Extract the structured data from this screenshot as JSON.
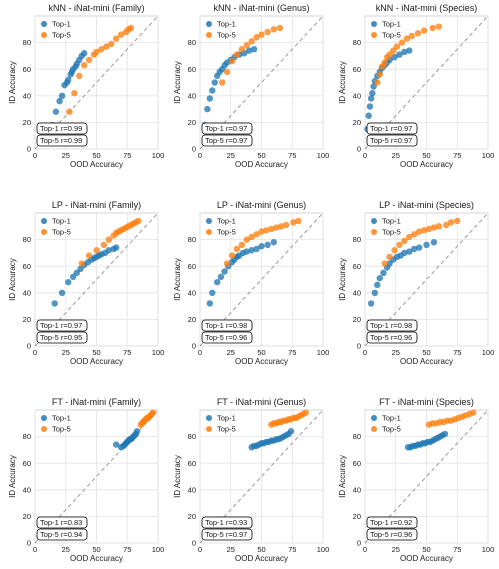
{
  "chart_data": [
    {
      "type": "scatter",
      "title": "kNN - iNat-mini (Family)",
      "xlabel": "OOD Accuracy",
      "ylabel": "ID Accuracy",
      "xlim": [
        0,
        100
      ],
      "ylim": [
        0,
        100
      ],
      "xticks": [
        0,
        25,
        50,
        75,
        100
      ],
      "yticks": [
        0,
        20,
        40,
        60,
        80
      ],
      "grid": true,
      "legend_position": "top-left",
      "diagonal": "dashed y=x",
      "series": [
        {
          "name": "Top-1",
          "color": "#1f77b4",
          "x": [
            14,
            17,
            20,
            22,
            24,
            26,
            27,
            29,
            30,
            31,
            33,
            34,
            36,
            38,
            40
          ],
          "y": [
            18,
            28,
            36,
            40,
            48,
            50,
            52,
            56,
            58,
            60,
            62,
            64,
            67,
            70,
            72
          ]
        },
        {
          "name": "Top-5",
          "color": "#ff7f0e",
          "x": [
            28,
            32,
            36,
            40,
            44,
            48,
            50,
            54,
            58,
            62,
            66,
            70,
            74,
            76,
            78
          ],
          "y": [
            28,
            42,
            55,
            63,
            67,
            71,
            73,
            75,
            77,
            79,
            83,
            86,
            88,
            90,
            91
          ]
        }
      ],
      "stats": [
        "Top-1 r=0.99",
        "Top-5 r=0.99"
      ]
    },
    {
      "type": "scatter",
      "title": "kNN - iNat-mini (Genus)",
      "xlabel": "OOD Accuracy",
      "ylabel": "ID Accuracy",
      "xlim": [
        0,
        100
      ],
      "ylim": [
        0,
        100
      ],
      "xticks": [
        0,
        25,
        50,
        75,
        100
      ],
      "yticks": [
        0,
        20,
        40,
        60,
        80
      ],
      "grid": true,
      "legend_position": "top-left",
      "diagonal": "dashed y=x",
      "series": [
        {
          "name": "Top-1",
          "color": "#1f77b4",
          "x": [
            4,
            6,
            8,
            10,
            12,
            14,
            16,
            18,
            20,
            22,
            25,
            28,
            32,
            36,
            40,
            44
          ],
          "y": [
            18,
            30,
            38,
            44,
            50,
            55,
            58,
            60,
            63,
            65,
            67,
            69,
            71,
            72,
            74,
            75
          ]
        },
        {
          "name": "Top-5",
          "color": "#ff7f0e",
          "x": [
            18,
            22,
            26,
            30,
            34,
            38,
            42,
            46,
            50,
            55,
            60,
            65
          ],
          "y": [
            50,
            58,
            66,
            71,
            75,
            78,
            81,
            84,
            86,
            88,
            90,
            91
          ]
        }
      ],
      "stats": [
        "Top-1 r=0.97",
        "Top-5 r=0.97"
      ]
    },
    {
      "type": "scatter",
      "title": "kNN - iNat-mini (Species)",
      "xlabel": "OOD Accuracy",
      "ylabel": "ID Accuracy",
      "xlim": [
        0,
        100
      ],
      "ylim": [
        0,
        100
      ],
      "xticks": [
        0,
        25,
        50,
        75,
        100
      ],
      "yticks": [
        0,
        20,
        40,
        60,
        80
      ],
      "grid": true,
      "legend_position": "top-left",
      "diagonal": "dashed y=x",
      "series": [
        {
          "name": "Top-1",
          "color": "#1f77b4",
          "x": [
            2,
            3,
            4,
            5,
            6,
            7,
            8,
            10,
            12,
            14,
            16,
            18,
            20,
            24,
            28,
            32,
            36
          ],
          "y": [
            15,
            25,
            32,
            38,
            42,
            47,
            51,
            55,
            58,
            61,
            63,
            65,
            67,
            69,
            71,
            73,
            74
          ]
        },
        {
          "name": "Top-5",
          "color": "#ff7f0e",
          "x": [
            10,
            12,
            14,
            16,
            18,
            20,
            23,
            26,
            30,
            34,
            38,
            43,
            48,
            55,
            60
          ],
          "y": [
            50,
            56,
            62,
            65,
            69,
            71,
            74,
            77,
            80,
            83,
            85,
            87,
            89,
            91,
            92
          ]
        }
      ],
      "stats": [
        "Top-1 r=0.97",
        "Top-5 r=0.97"
      ]
    },
    {
      "type": "scatter",
      "title": "LP - iNat-mini (Family)",
      "xlabel": "OOD Accuracy",
      "ylabel": "ID Accuracy",
      "xlim": [
        0,
        100
      ],
      "ylim": [
        0,
        100
      ],
      "xticks": [
        0,
        25,
        50,
        75,
        100
      ],
      "yticks": [
        0,
        20,
        40,
        60,
        80
      ],
      "grid": true,
      "legend_position": "top-left",
      "diagonal": "dashed y=x",
      "series": [
        {
          "name": "Top-1",
          "color": "#1f77b4",
          "x": [
            16,
            22,
            27,
            31,
            34,
            37,
            40,
            43,
            46,
            48,
            50,
            52,
            54,
            57,
            60,
            64,
            66
          ],
          "y": [
            32,
            40,
            48,
            52,
            55,
            58,
            61,
            63,
            65,
            66,
            67,
            68,
            69,
            70,
            72,
            73,
            74
          ]
        },
        {
          "name": "Top-5",
          "color": "#ff7f0e",
          "x": [
            38,
            44,
            50,
            56,
            60,
            64,
            66,
            68,
            70,
            72,
            74,
            76,
            78,
            80,
            82,
            84
          ],
          "y": [
            62,
            68,
            72,
            76,
            80,
            83,
            85,
            86,
            87,
            88,
            89,
            90,
            91,
            92,
            93,
            94
          ]
        }
      ],
      "stats": [
        "Top-1 r=0.97",
        "Top-5 r=0.95"
      ]
    },
    {
      "type": "scatter",
      "title": "LP - iNat-mini (Genus)",
      "xlabel": "OOD Accuracy",
      "ylabel": "ID Accuracy",
      "xlim": [
        0,
        100
      ],
      "ylim": [
        0,
        100
      ],
      "xticks": [
        0,
        25,
        50,
        75,
        100
      ],
      "yticks": [
        0,
        20,
        40,
        60,
        80
      ],
      "grid": true,
      "legend_position": "top-left",
      "diagonal": "dashed y=x",
      "series": [
        {
          "name": "Top-1",
          "color": "#1f77b4",
          "x": [
            8,
            10,
            14,
            17,
            20,
            23,
            26,
            28,
            30,
            32,
            35,
            38,
            42,
            46,
            50,
            55,
            60
          ],
          "y": [
            32,
            40,
            48,
            52,
            56,
            60,
            63,
            65,
            67,
            68,
            70,
            71,
            72,
            73,
            75,
            76,
            78
          ]
        },
        {
          "name": "Top-5",
          "color": "#ff7f0e",
          "x": [
            22,
            26,
            30,
            34,
            38,
            42,
            46,
            50,
            54,
            58,
            62,
            66,
            70,
            76,
            80
          ],
          "y": [
            62,
            68,
            73,
            76,
            80,
            82,
            84,
            86,
            87,
            88,
            89,
            90,
            91,
            93,
            94
          ]
        }
      ],
      "stats": [
        "Top-1 r=0.98",
        "Top-5 r=0.96"
      ]
    },
    {
      "type": "scatter",
      "title": "LP - iNat-mini (Species)",
      "xlabel": "OOD Accuracy",
      "ylabel": "ID Accuracy",
      "xlim": [
        0,
        100
      ],
      "ylim": [
        0,
        100
      ],
      "xticks": [
        0,
        25,
        50,
        75,
        100
      ],
      "yticks": [
        0,
        20,
        40,
        60,
        80
      ],
      "grid": true,
      "legend_position": "top-left",
      "diagonal": "dashed y=x",
      "series": [
        {
          "name": "Top-1",
          "color": "#1f77b4",
          "x": [
            5,
            8,
            10,
            12,
            15,
            18,
            20,
            23,
            26,
            29,
            32,
            36,
            40,
            44,
            50,
            56
          ],
          "y": [
            32,
            40,
            46,
            51,
            55,
            59,
            62,
            65,
            67,
            68,
            70,
            71,
            73,
            74,
            76,
            78
          ]
        },
        {
          "name": "Top-5",
          "color": "#ff7f0e",
          "x": [
            16,
            20,
            24,
            28,
            32,
            36,
            40,
            44,
            48,
            52,
            56,
            60,
            66,
            70,
            75
          ],
          "y": [
            62,
            67,
            72,
            76,
            79,
            82,
            84,
            86,
            87,
            88,
            89,
            90,
            91,
            93,
            94
          ]
        }
      ],
      "stats": [
        "Top-1 r=0.98",
        "Top-5 r=0.96"
      ]
    },
    {
      "type": "scatter",
      "title": "FT - iNat-mini (Family)",
      "xlabel": "OOD Accuracy",
      "ylabel": "ID Accuracy",
      "xlim": [
        0,
        100
      ],
      "ylim": [
        0,
        100
      ],
      "xticks": [
        0,
        25,
        50,
        75,
        100
      ],
      "yticks": [
        0,
        20,
        40,
        60,
        80
      ],
      "grid": true,
      "legend_position": "top-left",
      "diagonal": "dashed y=x",
      "series": [
        {
          "name": "Top-1",
          "color": "#1f77b4",
          "x": [
            66,
            70,
            72,
            73,
            74,
            75,
            76,
            77,
            78,
            79,
            80,
            81,
            82,
            83
          ],
          "y": [
            74,
            72,
            73,
            74,
            75,
            76,
            77,
            78,
            78,
            79,
            80,
            81,
            82,
            84
          ]
        },
        {
          "name": "Top-5",
          "color": "#ff7f0e",
          "x": [
            86,
            87,
            88,
            89,
            90,
            91,
            92,
            93,
            94,
            95,
            96
          ],
          "y": [
            89,
            90,
            91,
            92,
            93,
            94,
            94,
            95,
            96,
            97,
            98
          ]
        }
      ],
      "stats": [
        "Top-1 r=0.83",
        "Top-5 r=0.94"
      ]
    },
    {
      "type": "scatter",
      "title": "FT - iNat-mini (Genus)",
      "xlabel": "OOD Accuracy",
      "ylabel": "ID Accuracy",
      "xlim": [
        0,
        100
      ],
      "ylim": [
        0,
        100
      ],
      "xticks": [
        0,
        25,
        50,
        75,
        100
      ],
      "yticks": [
        0,
        20,
        40,
        60,
        80
      ],
      "grid": true,
      "legend_position": "top-left",
      "diagonal": "dashed y=x",
      "series": [
        {
          "name": "Top-1",
          "color": "#1f77b4",
          "x": [
            42,
            44,
            46,
            48,
            50,
            52,
            54,
            56,
            58,
            60,
            62,
            64,
            66,
            68,
            70,
            72,
            74
          ],
          "y": [
            72,
            73,
            73,
            74,
            75,
            75,
            76,
            76,
            77,
            77,
            78,
            78,
            79,
            80,
            81,
            82,
            84
          ]
        },
        {
          "name": "Top-5",
          "color": "#ff7f0e",
          "x": [
            58,
            60,
            62,
            64,
            66,
            68,
            70,
            72,
            74,
            76,
            78,
            80,
            82,
            84,
            86
          ],
          "y": [
            89,
            90,
            90,
            91,
            91,
            92,
            92,
            93,
            93,
            94,
            94,
            95,
            96,
            97,
            98
          ]
        }
      ],
      "stats": [
        "Top-1 r=0.93",
        "Top-5 r=0.97"
      ]
    },
    {
      "type": "scatter",
      "title": "FT - iNat-mini (Species)",
      "xlabel": "OOD Accuracy",
      "ylabel": "ID Accuracy",
      "xlim": [
        0,
        100
      ],
      "ylim": [
        0,
        100
      ],
      "xticks": [
        0,
        25,
        50,
        75,
        100
      ],
      "yticks": [
        0,
        20,
        40,
        60,
        80
      ],
      "grid": true,
      "legend_position": "top-left",
      "diagonal": "dashed y=x",
      "series": [
        {
          "name": "Top-1",
          "color": "#1f77b4",
          "x": [
            35,
            37,
            39,
            41,
            43,
            45,
            47,
            49,
            51,
            53,
            55,
            57,
            59,
            61,
            63,
            65
          ],
          "y": [
            72,
            72,
            73,
            73,
            74,
            74,
            75,
            75,
            76,
            76,
            77,
            78,
            79,
            80,
            81,
            82
          ]
        },
        {
          "name": "Top-5",
          "color": "#ff7f0e",
          "x": [
            52,
            55,
            58,
            61,
            64,
            67,
            70,
            73,
            76,
            79,
            82,
            85,
            88
          ],
          "y": [
            89,
            90,
            90,
            91,
            91,
            92,
            92,
            93,
            94,
            95,
            96,
            97,
            98
          ]
        }
      ],
      "stats": [
        "Top-1 r=0.92",
        "Top-5 r=0.96"
      ]
    }
  ]
}
